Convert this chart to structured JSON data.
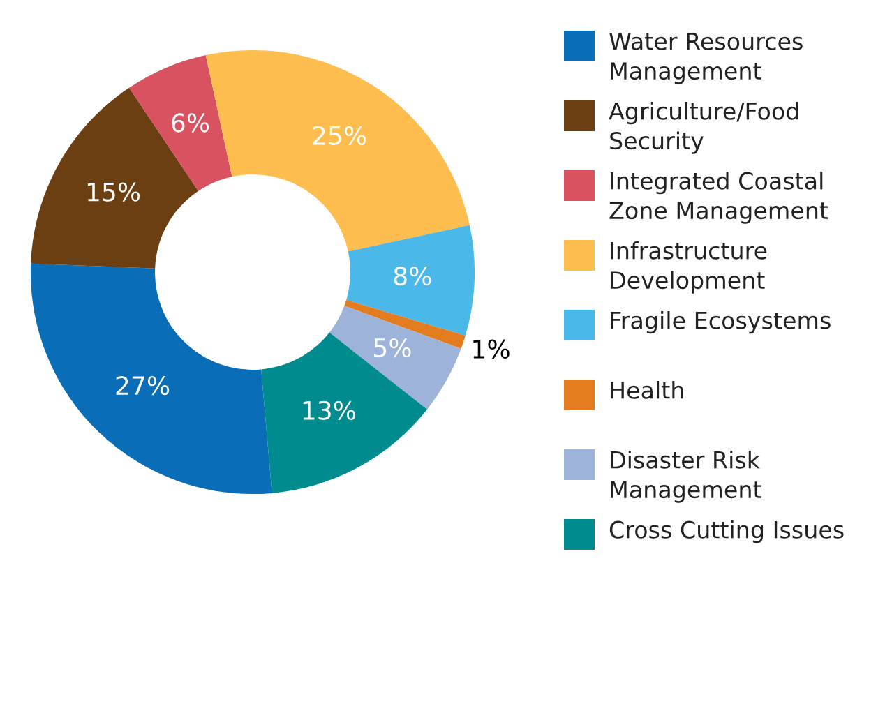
{
  "chart_data": {
    "type": "donut",
    "categories": [
      "Water Resources Management",
      "Agriculture/Food Security",
      "Integrated Coastal Zone Management",
      "Infrastructure Development",
      "Fragile Ecosystems",
      "Health",
      "Disaster Risk Management",
      "Cross Cutting Issues"
    ],
    "values": [
      27,
      15,
      6,
      25,
      8,
      1,
      5,
      13
    ],
    "colors": [
      "#0a6db7",
      "#6b3f12",
      "#d9525f",
      "#fdbd4f",
      "#4ab8e8",
      "#e27c1e",
      "#9db3d9",
      "#008b8f"
    ],
    "value_labels": [
      "27%",
      "15%",
      "6%",
      "25%",
      "8%",
      "1%",
      "5%",
      "13%"
    ],
    "legend": "right"
  }
}
